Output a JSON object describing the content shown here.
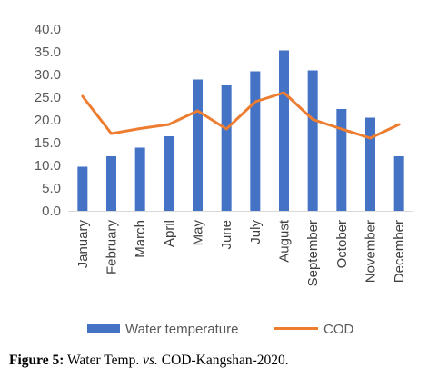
{
  "chart_data": {
    "type": "bar",
    "categories": [
      "January",
      "February",
      "March",
      "April",
      "May",
      "June",
      "July",
      "August",
      "September",
      "October",
      "November",
      "December"
    ],
    "series": [
      {
        "name": "Water temperature",
        "type": "bar",
        "color": "#4472C4",
        "values": [
          9.7,
          12.0,
          13.9,
          16.4,
          28.9,
          27.7,
          30.7,
          35.3,
          30.9,
          22.4,
          20.5,
          12.0
        ]
      },
      {
        "name": "COD",
        "type": "line",
        "color": "#ED7D31",
        "values": [
          25.2,
          17.0,
          18.1,
          19.0,
          22.0,
          18.0,
          24.0,
          26.0,
          20.1,
          18.0,
          16.0,
          19.0
        ]
      }
    ],
    "yticks": [
      "0.0",
      "5.0",
      "10.0",
      "15.0",
      "20.0",
      "25.0",
      "30.0",
      "35.0",
      "40.0"
    ],
    "ylim": [
      0,
      40
    ],
    "legend_position": "bottom",
    "grid": false
  },
  "caption": {
    "label": "Figure 5:",
    "part1": "Water Temp.",
    "vs": "vs.",
    "part2": "COD-Kangshan-2020."
  }
}
